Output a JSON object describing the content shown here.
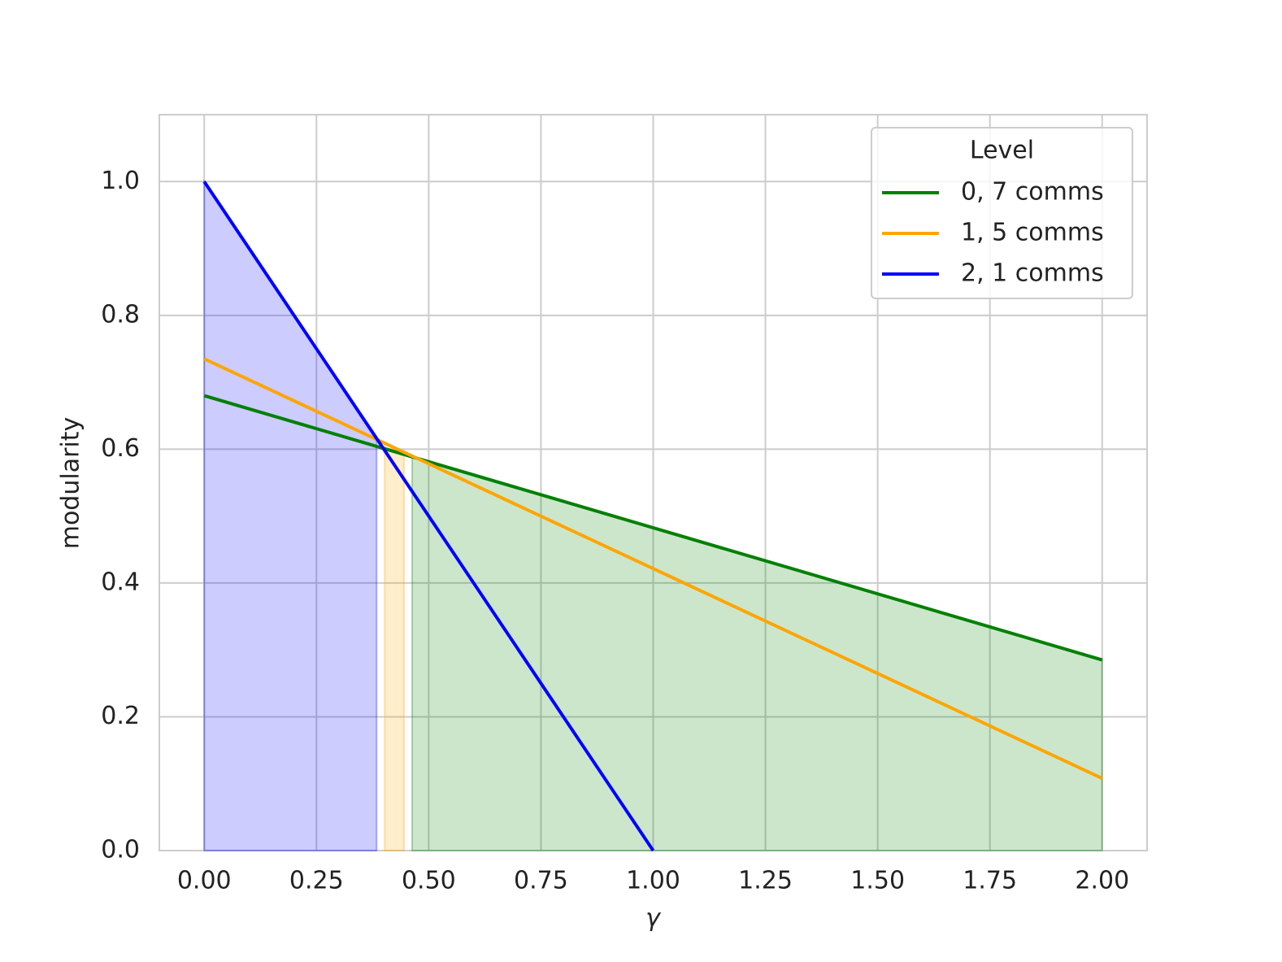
{
  "chart_data": {
    "type": "line",
    "xlabel": "γ",
    "ylabel": "modularity",
    "legend_title": "Level",
    "legend_loc": "upper right",
    "grid": true,
    "xlim": [
      -0.1,
      2.1
    ],
    "ylim": [
      0,
      1.1
    ],
    "xticks": [
      {
        "value": 0,
        "label": "0.00"
      },
      0.25,
      {
        "value": 0.5,
        "label": "0.50"
      },
      0.75,
      {
        "value": 1,
        "label": "1.00"
      },
      1.25,
      {
        "value": 1.5,
        "label": "1.50"
      },
      1.75,
      {
        "value": 2,
        "label": "2.00"
      }
    ],
    "yticks": [
      {
        "value": 0,
        "label": "0.0"
      },
      0.2,
      0.4,
      0.6,
      0.8,
      {
        "value": 1,
        "label": "1.0"
      }
    ],
    "series": [
      {
        "name": "0, 7 comms",
        "color": "#008000",
        "x": [
          0,
          2
        ],
        "values": [
          0.68,
          0.285
        ],
        "fill_x": [
          0.463,
          2
        ]
      },
      {
        "name": "1, 5 comms",
        "color": "#ffa500",
        "x": [
          0,
          2
        ],
        "values": [
          0.735,
          0.108
        ],
        "fill_x": [
          0.402,
          0.445
        ]
      },
      {
        "name": "2, 1 comms",
        "color": "#0000ff",
        "x": [
          0,
          1
        ],
        "values": [
          1,
          0
        ],
        "fill_x": [
          0,
          0.384
        ]
      }
    ]
  }
}
